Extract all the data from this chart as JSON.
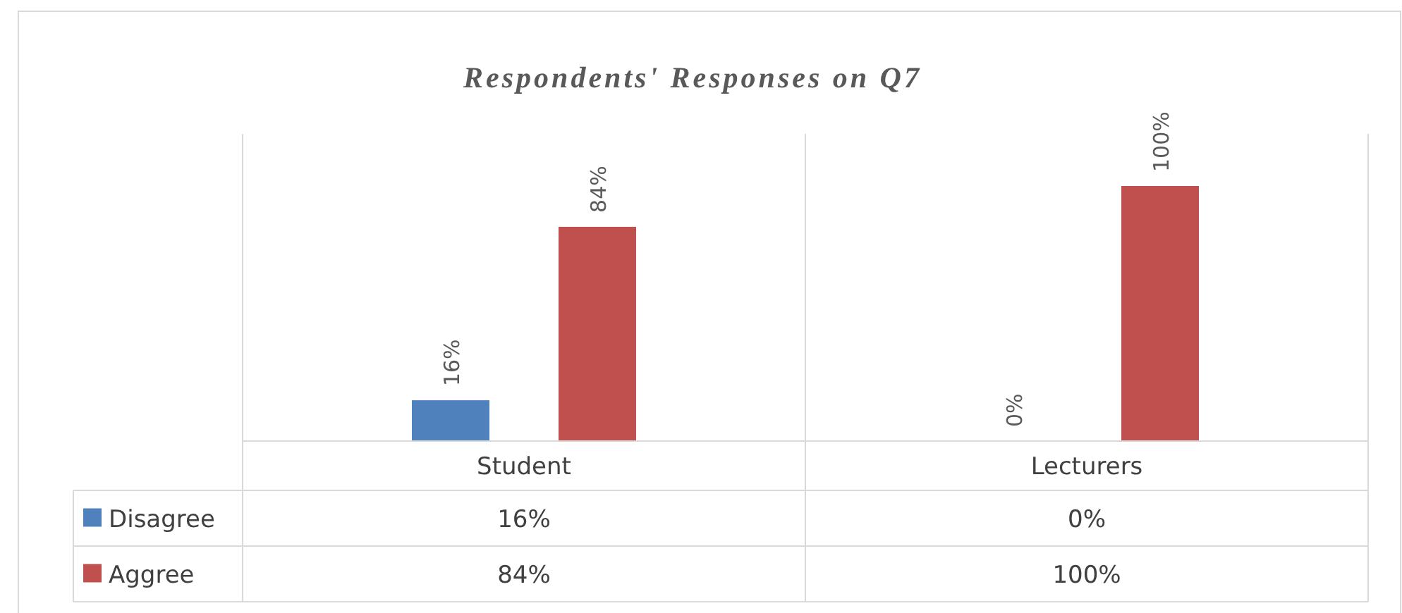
{
  "chart_data": {
    "type": "bar",
    "title": "Respondents' Responses on Q7",
    "categories": [
      "Student",
      "Lecturers"
    ],
    "series": [
      {
        "name": "Disagree",
        "color": "#4f81bd",
        "values": [
          16,
          0
        ],
        "value_labels": [
          "16%",
          "0%"
        ]
      },
      {
        "name": "Aggree",
        "color": "#c0504d",
        "values": [
          84,
          100
        ],
        "value_labels": [
          "84%",
          "100%"
        ]
      }
    ],
    "grid": "x",
    "legend": "bottom"
  }
}
